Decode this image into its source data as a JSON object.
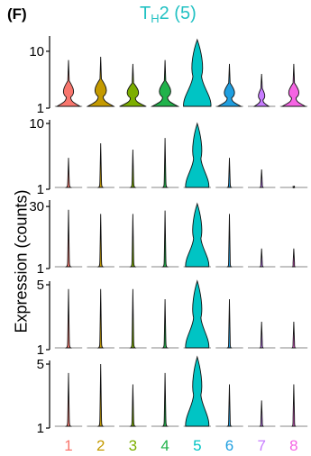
{
  "panel_label": "(F)",
  "title_main": "T",
  "title_sub": "H",
  "title_rest": "2 (5)",
  "colors": {
    "1": "#f8766d",
    "2": "#c49a00",
    "3": "#7cae00",
    "4": "#21b24b",
    "5": "#00c4c4",
    "6": "#1f9fe0",
    "7": "#c77cff",
    "8": "#f564e3"
  },
  "chart_data": {
    "type": "violin",
    "title": "TH2 (5)",
    "ylabel": "Expression (counts)",
    "categories": [
      "1",
      "2",
      "3",
      "4",
      "5",
      "6",
      "7",
      "8"
    ],
    "yscale": "log",
    "panels": [
      {
        "ylim": [
          1,
          16
        ],
        "ticks": [
          1,
          10
        ],
        "tick_labels": [
          "1",
          "10"
        ],
        "max": [
          7,
          8,
          6,
          7,
          16,
          6,
          4,
          6
        ],
        "widths": [
          0.8,
          0.9,
          0.9,
          0.9,
          1.0,
          0.8,
          0.5,
          0.8
        ]
      },
      {
        "ylim": [
          1,
          10
        ],
        "ticks": [
          1,
          10
        ],
        "tick_labels": [
          "1",
          "10"
        ],
        "max": [
          3,
          5,
          4,
          6,
          10,
          3,
          2,
          1
        ],
        "widths": [
          0.15,
          0.15,
          0.15,
          0.15,
          0.85,
          0.12,
          0.1,
          0.05
        ]
      },
      {
        "ylim": [
          1,
          35
        ],
        "ticks": [
          1,
          30
        ],
        "tick_labels": [
          "1",
          "30"
        ],
        "max": [
          25,
          20,
          20,
          24,
          35,
          20,
          3,
          3
        ],
        "widths": [
          0.15,
          0.15,
          0.15,
          0.15,
          0.85,
          0.12,
          0.1,
          0.08
        ]
      },
      {
        "ylim": [
          1,
          5
        ],
        "ticks": [
          1,
          5
        ],
        "tick_labels": [
          "1",
          "5"
        ],
        "max": [
          4.5,
          4.5,
          4.5,
          3.5,
          5.5,
          3.5,
          2,
          2
        ],
        "widths": [
          0.15,
          0.15,
          0.15,
          0.15,
          0.85,
          0.12,
          0.1,
          0.1
        ]
      },
      {
        "ylim": [
          1,
          5
        ],
        "ticks": [
          1,
          5
        ],
        "tick_labels": [
          "1",
          "5"
        ],
        "max": [
          4,
          5,
          3,
          4,
          6,
          3,
          2,
          3
        ],
        "widths": [
          0.15,
          0.15,
          0.15,
          0.15,
          0.85,
          0.12,
          0.1,
          0.1
        ]
      }
    ]
  }
}
